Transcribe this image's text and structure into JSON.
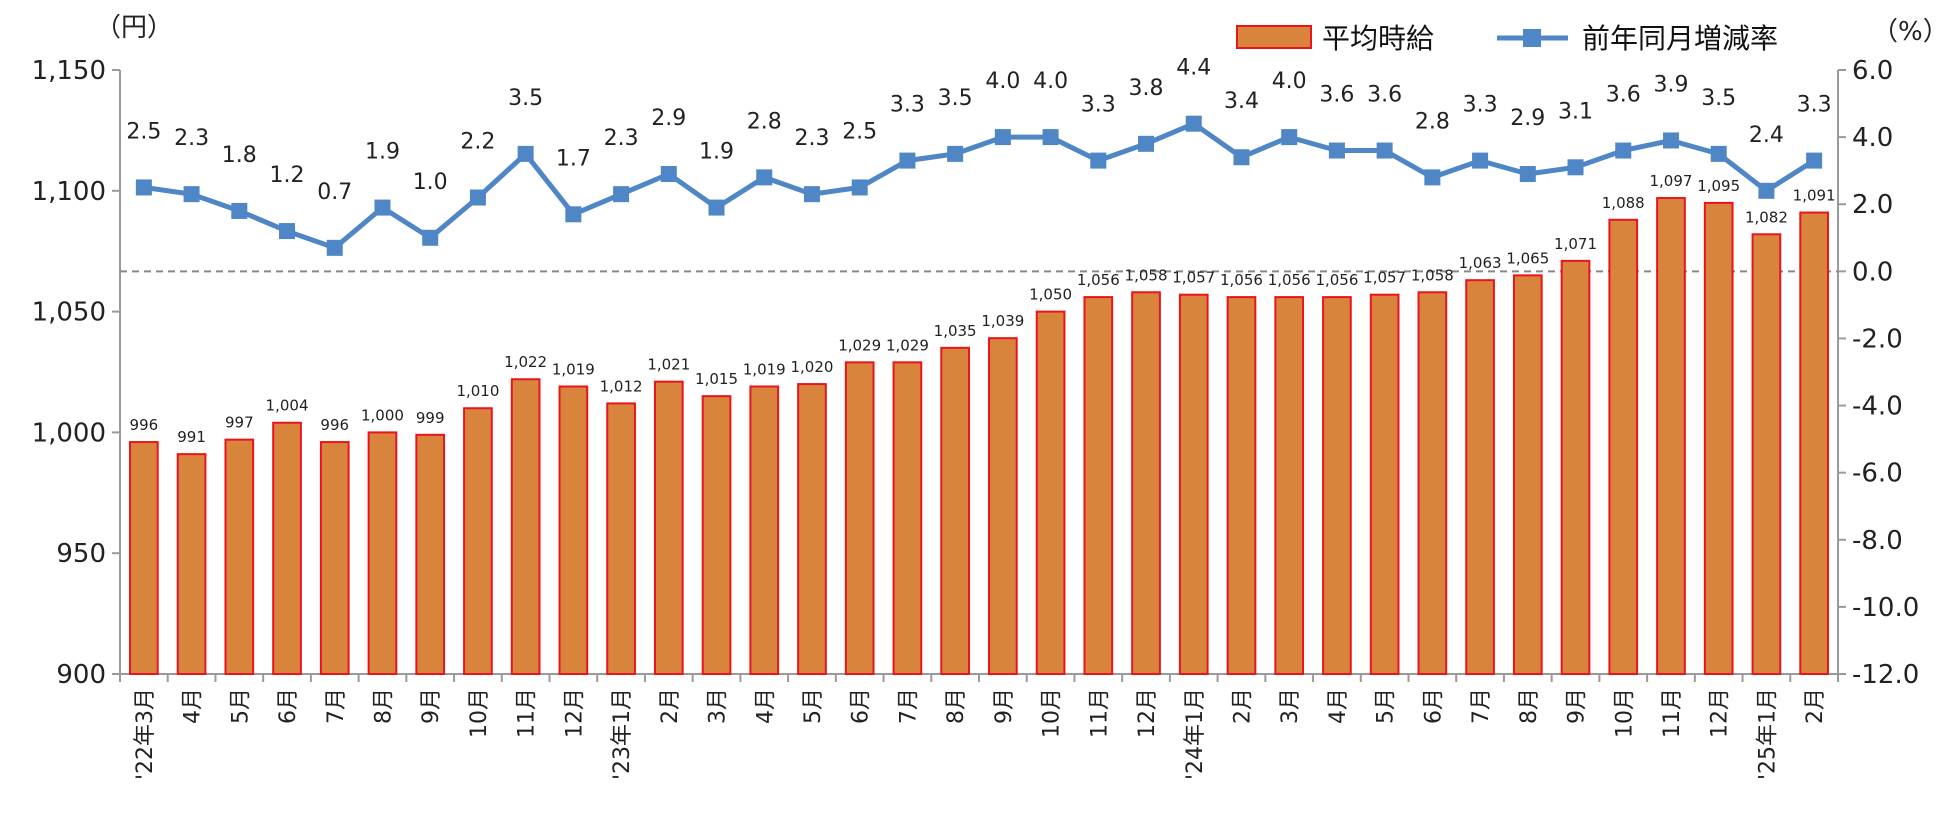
{
  "chart_data": {
    "type": "bar+line",
    "categories": [
      "'22年3月",
      "4月",
      "5月",
      "6月",
      "7月",
      "8月",
      "9月",
      "10月",
      "11月",
      "12月",
      "'23年1月",
      "2月",
      "3月",
      "4月",
      "5月",
      "6月",
      "7月",
      "8月",
      "9月",
      "10月",
      "11月",
      "12月",
      "'24年1月",
      "2月",
      "3月",
      "4月",
      "5月",
      "6月",
      "7月",
      "8月",
      "9月",
      "10月",
      "11月",
      "12月",
      "'25年1月",
      "2月"
    ],
    "series": [
      {
        "name": "平均時給",
        "type": "bar",
        "axis": "left",
        "color": "#D9843C",
        "edge_color": "#E8141E",
        "values": [
          996,
          991,
          997,
          1004,
          996,
          1000,
          999,
          1010,
          1022,
          1019,
          1012,
          1021,
          1015,
          1019,
          1020,
          1029,
          1029,
          1035,
          1039,
          1050,
          1056,
          1058,
          1057,
          1056,
          1056,
          1056,
          1057,
          1058,
          1063,
          1065,
          1071,
          1088,
          1097,
          1095,
          1082,
          1091
        ],
        "labels": [
          "996",
          "991",
          "997",
          "1,004",
          "996",
          "1,000",
          "999",
          "1,010",
          "1,022",
          "1,019",
          "1,012",
          "1,021",
          "1,015",
          "1,019",
          "1,020",
          "1,029",
          "1,029",
          "1,035",
          "1,039",
          "1,050",
          "1,056",
          "1,058",
          "1,057",
          "1,056",
          "1,056",
          "1,056",
          "1,057",
          "1,058",
          "1,063",
          "1,065",
          "1,071",
          "1,088",
          "1,097",
          "1,095",
          "1,082",
          "1,091"
        ]
      },
      {
        "name": "前年同月増減率",
        "type": "line",
        "axis": "right",
        "color": "#4F86C6",
        "values": [
          2.5,
          2.3,
          1.8,
          1.2,
          0.7,
          1.9,
          1.0,
          2.2,
          3.5,
          1.7,
          2.3,
          2.9,
          1.9,
          2.8,
          2.3,
          2.5,
          3.3,
          3.5,
          4.0,
          4.0,
          3.3,
          3.8,
          4.4,
          3.4,
          4.0,
          3.6,
          3.6,
          2.8,
          3.3,
          2.9,
          3.1,
          3.6,
          3.9,
          3.5,
          2.4,
          3.3
        ],
        "labels": [
          "2.5",
          "2.3",
          "1.8",
          "1.2",
          "0.7",
          "1.9",
          "1.0",
          "2.2",
          "3.5",
          "1.7",
          "2.3",
          "2.9",
          "1.9",
          "2.8",
          "2.3",
          "2.5",
          "3.3",
          "3.5",
          "4.0",
          "4.0",
          "3.3",
          "3.8",
          "4.4",
          "3.4",
          "4.0",
          "3.6",
          "3.6",
          "2.8",
          "3.3",
          "2.9",
          "3.1",
          "3.6",
          "3.9",
          "3.5",
          "2.4",
          "3.3"
        ]
      }
    ],
    "y_left": {
      "unit": "（円）",
      "ylim": [
        900,
        1150
      ],
      "ticks": [
        900,
        950,
        1000,
        1050,
        1100,
        1150
      ],
      "tick_labels": [
        "900",
        "950",
        "1,000",
        "1,050",
        "1,100",
        "1,150"
      ]
    },
    "y_right": {
      "unit": "（%）",
      "ylim": [
        -12.0,
        6.0
      ],
      "ticks": [
        -12,
        -10,
        -8,
        -6,
        -4,
        -2,
        0,
        2,
        4,
        6
      ],
      "tick_labels": [
        "-12.0",
        "-10.0",
        "-8.0",
        "-6.0",
        "-4.0",
        "-2.0",
        "0.0",
        "2.0",
        "4.0",
        "6.0"
      ]
    },
    "reference_line": {
      "axis": "right",
      "value": 0,
      "style": "dashed",
      "color": "#888888"
    },
    "axis_color": "#9A9A9A",
    "legend": {
      "position": "top-right",
      "items": [
        {
          "label": "平均時給",
          "kind": "bar"
        },
        {
          "label": "前年同月増減率",
          "kind": "line"
        }
      ]
    }
  }
}
